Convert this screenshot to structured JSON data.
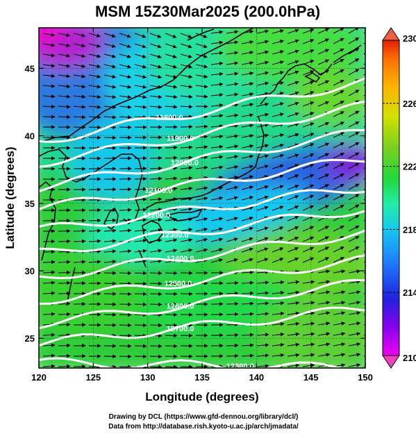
{
  "title": "MSM 15Z30Mar2025 (200.0hPa)",
  "x_axis": {
    "label": "Longitude (degrees)",
    "ticks": [
      "120",
      "125",
      "130",
      "135",
      "140",
      "145",
      "150"
    ],
    "range": [
      120,
      150
    ]
  },
  "y_axis": {
    "label": "Latitude  (degrees)",
    "ticks": [
      "25",
      "30",
      "35",
      "40",
      "45"
    ],
    "range": [
      22.8,
      48.0
    ]
  },
  "colorbar": {
    "range": [
      210,
      230
    ],
    "ticks": [
      "230",
      "226",
      "222",
      "218",
      "214",
      "210"
    ],
    "colors": [
      "#ee00ee",
      "#8800ee",
      "#2222dd",
      "#1c80ff",
      "#18c8f0",
      "#22eea8",
      "#22d83c",
      "#7ad020",
      "#d4e000",
      "#ffb000",
      "#ff7000",
      "#e02000"
    ]
  },
  "contours": [
    {
      "label": "11800.0",
      "lat_west": 39.6,
      "lat_east": 44.0,
      "label_lon": 132.0
    },
    {
      "label": "11900.0",
      "lat_west": 38.0,
      "lat_east": 42.2,
      "label_lon": 133.0
    },
    {
      "label": "12000.0",
      "lat_west": 36.2,
      "lat_east": 40.3,
      "label_lon": 133.4
    },
    {
      "label": "12100.0",
      "lat_west": 34.6,
      "lat_east": 38.3,
      "label_lon": 131.0
    },
    {
      "label": "12200.0",
      "lat_west": 33.0,
      "lat_east": 36.2,
      "label_lon": 130.8
    },
    {
      "label": "12300.0",
      "lat_west": 31.3,
      "lat_east": 34.6,
      "label_lon": 132.5
    },
    {
      "label": "12400.0",
      "lat_west": 29.5,
      "lat_east": 32.8,
      "label_lon": 133.0
    },
    {
      "label": "12500.0",
      "lat_west": 27.8,
      "lat_east": 30.8,
      "label_lon": 132.8
    },
    {
      "label": "12600.0",
      "lat_west": 26.1,
      "lat_east": 29.1,
      "label_lon": 133.0
    },
    {
      "label": "12700.0",
      "lat_west": 24.6,
      "lat_east": 27.2,
      "label_lon": 133.0
    },
    {
      "label": "12800.0",
      "lat_west": 23.2,
      "lat_east": 22.8,
      "label_lon": 138.5
    }
  ],
  "credits": {
    "line1": "Drawing by DCL (https://www.gfd-dennou.org/library/dcl/)",
    "line2": "Data from http://database.rish.kyoto-u.ac.jp/arch/jmadata/"
  }
}
